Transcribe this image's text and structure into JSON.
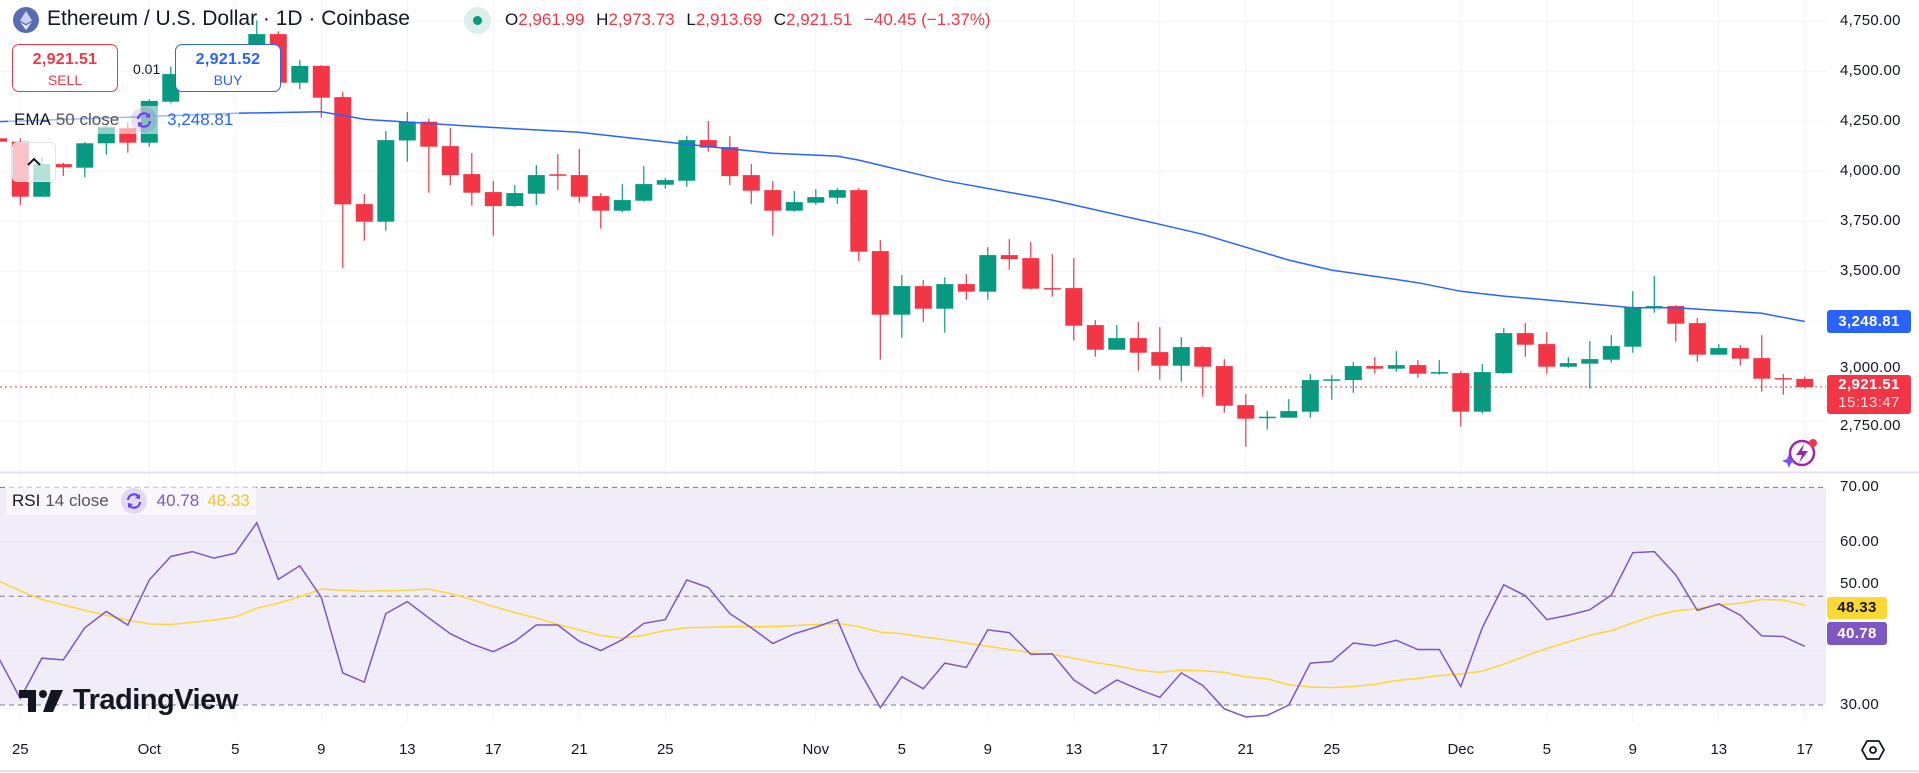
{
  "header": {
    "title": "Ethereum / U.S. Dollar · 1D · Coinbase",
    "market_status": "open",
    "ohlc": {
      "o_label": "O",
      "o": "2,961.99",
      "h_label": "H",
      "h": "2,973.73",
      "l_label": "L",
      "l": "2,913.69",
      "c_label": "C",
      "c": "2,921.51",
      "change": "−40.45 (−1.37%)"
    }
  },
  "trade": {
    "sell_price": "2,921.51",
    "sell_label": "SELL",
    "spread": "0.01",
    "buy_price": "2,921.52",
    "buy_label": "BUY"
  },
  "ema_legend": {
    "name": "EMA",
    "params": "50 close",
    "value": "3,248.81"
  },
  "rsi_legend": {
    "name": "RSI",
    "params": "14 close",
    "value": "40.78",
    "ma_value": "48.33"
  },
  "price_axis": {
    "ticks": [
      "4,750.00",
      "4,500.00",
      "4,250.00",
      "4,000.00",
      "3,750.00",
      "3,500.00",
      "3,000.00",
      "2,750.00"
    ],
    "ema_tag": "3,248.81",
    "last_price_tag": "2,921.51",
    "countdown": "15:13:47"
  },
  "rsi_axis": {
    "ticks": [
      "70.00",
      "60.00",
      "50.00",
      "30.00"
    ],
    "ma_tag": "48.33",
    "rsi_tag": "40.78"
  },
  "time_axis": [
    {
      "label": "25",
      "date": "Sep 25"
    },
    {
      "label": "Oct",
      "date": "Oct 1"
    },
    {
      "label": "5",
      "date": "Oct 5"
    },
    {
      "label": "9",
      "date": "Oct 9"
    },
    {
      "label": "13",
      "date": "Oct 13"
    },
    {
      "label": "17",
      "date": "Oct 17"
    },
    {
      "label": "21",
      "date": "Oct 21"
    },
    {
      "label": "25",
      "date": "Oct 25"
    },
    {
      "label": "Nov",
      "date": "Nov 1"
    },
    {
      "label": "5",
      "date": "Nov 5"
    },
    {
      "label": "9",
      "date": "Nov 9"
    },
    {
      "label": "13",
      "date": "Nov 13"
    },
    {
      "label": "17",
      "date": "Nov 17"
    },
    {
      "label": "21",
      "date": "Nov 21"
    },
    {
      "label": "25",
      "date": "Nov 25"
    },
    {
      "label": "Dec",
      "date": "Dec 1"
    },
    {
      "label": "5",
      "date": "Dec 5"
    },
    {
      "label": "9",
      "date": "Dec 9"
    },
    {
      "label": "13",
      "date": "Dec 13"
    },
    {
      "label": "17",
      "date": "Dec 17"
    }
  ],
  "watermark": "TradingView",
  "colors": {
    "up": "#089981",
    "down": "#f23645",
    "ema": "#2962ff",
    "rsi": "#7e57c2",
    "rsi_ma": "#fdd835",
    "rsi_band": "#f0ecf8",
    "grid": "#f0f3fa"
  },
  "chart_data": {
    "type": "candlestick",
    "price_range": [
      2500,
      4750
    ],
    "rsi_range": [
      30,
      70
    ],
    "candles_columns": [
      "date",
      "open",
      "high",
      "low",
      "close"
    ],
    "candles": [
      [
        "Sep 24",
        4165,
        4172,
        4140,
        4148
      ],
      [
        "Sep 25",
        4148,
        4165,
        3831,
        3873
      ],
      [
        "Sep 26",
        3873,
        4070,
        3873,
        4036
      ],
      [
        "Sep 27",
        4036,
        4043,
        3976,
        4020
      ],
      [
        "Sep 28",
        4018,
        4146,
        3970,
        4140
      ],
      [
        "Sep 29",
        4140,
        4240,
        4083,
        4220
      ],
      [
        "Sep 30",
        4215,
        4245,
        4093,
        4143
      ],
      [
        "Oct 1",
        4143,
        4360,
        4123,
        4352
      ],
      [
        "Oct 2",
        4348,
        4523,
        4340,
        4486
      ],
      [
        "Oct 3",
        4486,
        4520,
        4440,
        4490
      ],
      [
        "Oct 4",
        4490,
        4530,
        4460,
        4500
      ],
      [
        "Oct 5",
        4500,
        4590,
        4480,
        4560
      ],
      [
        "Oct 6",
        4560,
        4755,
        4540,
        4686
      ],
      [
        "Oct 7",
        4686,
        4700,
        4420,
        4443
      ],
      [
        "Oct 8",
        4443,
        4557,
        4411,
        4527
      ],
      [
        "Oct 9",
        4527,
        4531,
        4268,
        4368
      ],
      [
        "Oct 10",
        4371,
        4398,
        3515,
        3835
      ],
      [
        "Oct 11",
        3836,
        3886,
        3653,
        3748
      ],
      [
        "Oct 12",
        3748,
        4201,
        3703,
        4156
      ],
      [
        "Oct 13",
        4154,
        4296,
        4048,
        4248
      ],
      [
        "Oct 14",
        4248,
        4263,
        3893,
        4123
      ],
      [
        "Oct 15",
        4126,
        4218,
        3931,
        3981
      ],
      [
        "Oct 16",
        3986,
        4091,
        3828,
        3893
      ],
      [
        "Oct 17",
        3896,
        3951,
        3678,
        3826
      ],
      [
        "Oct 18",
        3826,
        3931,
        3823,
        3891
      ],
      [
        "Oct 19",
        3888,
        4031,
        3831,
        3981
      ],
      [
        "Oct 20",
        3985,
        4086,
        3906,
        3981
      ],
      [
        "Oct 21",
        3981,
        4111,
        3843,
        3873
      ],
      [
        "Oct 22",
        3876,
        3891,
        3713,
        3803
      ],
      [
        "Oct 23",
        3803,
        3936,
        3796,
        3856
      ],
      [
        "Oct 24",
        3853,
        4026,
        3848,
        3936
      ],
      [
        "Oct 25",
        3933,
        3966,
        3913,
        3956
      ],
      [
        "Oct 26",
        3953,
        4176,
        3923,
        4156
      ],
      [
        "Oct 27",
        4156,
        4251,
        4098,
        4118
      ],
      [
        "Oct 28",
        4121,
        4176,
        3931,
        3976
      ],
      [
        "Oct 29",
        3981,
        4036,
        3836,
        3903
      ],
      [
        "Oct 30",
        3906,
        3951,
        3678,
        3803
      ],
      [
        "Oct 31",
        3803,
        3901,
        3798,
        3846
      ],
      [
        "Nov 1",
        3843,
        3911,
        3833,
        3871
      ],
      [
        "Nov 2",
        3868,
        3916,
        3836,
        3906
      ],
      [
        "Nov 3",
        3906,
        3916,
        3551,
        3598
      ],
      [
        "Nov 4",
        3601,
        3656,
        3058,
        3283
      ],
      [
        "Nov 5",
        3283,
        3481,
        3168,
        3426
      ],
      [
        "Nov 6",
        3426,
        3456,
        3248,
        3313
      ],
      [
        "Nov 7",
        3313,
        3471,
        3193,
        3436
      ],
      [
        "Nov 8",
        3436,
        3486,
        3358,
        3398
      ],
      [
        "Nov 9",
        3398,
        3621,
        3358,
        3581
      ],
      [
        "Nov 10",
        3581,
        3661,
        3508,
        3561
      ],
      [
        "Nov 11",
        3566,
        3646,
        3408,
        3413
      ],
      [
        "Nov 12",
        3416,
        3586,
        3373,
        3413
      ],
      [
        "Nov 13",
        3416,
        3566,
        3153,
        3228
      ],
      [
        "Nov 14",
        3231,
        3256,
        3073,
        3108
      ],
      [
        "Nov 15",
        3108,
        3231,
        3108,
        3166
      ],
      [
        "Nov 16",
        3166,
        3246,
        3003,
        3093
      ],
      [
        "Nov 17",
        3096,
        3221,
        2958,
        3028
      ],
      [
        "Nov 18",
        3028,
        3171,
        2948,
        3121
      ],
      [
        "Nov 19",
        3121,
        3126,
        2873,
        3023
      ],
      [
        "Nov 20",
        3026,
        3061,
        2793,
        2828
      ],
      [
        "Nov 21",
        2831,
        2886,
        2623,
        2763
      ],
      [
        "Nov 22",
        2768,
        2801,
        2708,
        2773
      ],
      [
        "Nov 23",
        2768,
        2861,
        2768,
        2801
      ],
      [
        "Nov 24",
        2798,
        2986,
        2768,
        2956
      ],
      [
        "Nov 25",
        2953,
        2981,
        2858,
        2960
      ],
      [
        "Nov 26",
        2956,
        3046,
        2893,
        3026
      ],
      [
        "Nov 27",
        3026,
        3071,
        2988,
        3013
      ],
      [
        "Nov 28",
        3013,
        3101,
        2998,
        3031
      ],
      [
        "Nov 29",
        3031,
        3056,
        2968,
        2988
      ],
      [
        "Nov 30",
        2993,
        3056,
        2983,
        2996
      ],
      [
        "Dec 1",
        2991,
        3001,
        2723,
        2798
      ],
      [
        "Dec 2",
        2798,
        3036,
        2788,
        2996
      ],
      [
        "Dec 3",
        2991,
        3216,
        2986,
        3191
      ],
      [
        "Dec 4",
        3191,
        3241,
        3073,
        3133
      ],
      [
        "Dec 5",
        3136,
        3196,
        2988,
        3023
      ],
      [
        "Dec 6",
        3023,
        3071,
        3018,
        3041
      ],
      [
        "Dec 7",
        3038,
        3151,
        2913,
        3061
      ],
      [
        "Dec 8",
        3058,
        3181,
        3043,
        3126
      ],
      [
        "Dec 9",
        3123,
        3401,
        3093,
        3321
      ],
      [
        "Dec 10",
        3318,
        3476,
        3293,
        3326
      ],
      [
        "Dec 11",
        3326,
        3331,
        3148,
        3238
      ],
      [
        "Dec 12",
        3241,
        3266,
        3048,
        3083
      ],
      [
        "Dec 13",
        3083,
        3136,
        3083,
        3116
      ],
      [
        "Dec 14",
        3116,
        3131,
        3028,
        3063
      ],
      [
        "Dec 15",
        3066,
        3181,
        2898,
        2963
      ],
      [
        "Dec 16",
        2966,
        2986,
        2883,
        2963
      ],
      [
        "Dec 17",
        2961.99,
        2973.73,
        2913.69,
        2921.51
      ]
    ],
    "ema50": [
      [
        "Sep 24",
        4248
      ],
      [
        "Sep 30",
        4270
      ],
      [
        "Oct 5",
        4290
      ],
      [
        "Oct 9",
        4298
      ],
      [
        "Oct 11",
        4260
      ],
      [
        "Oct 16",
        4225
      ],
      [
        "Oct 21",
        4195
      ],
      [
        "Oct 26",
        4135
      ],
      [
        "Oct 30",
        4090
      ],
      [
        "Nov 2",
        4076
      ],
      [
        "Nov 3",
        4056
      ],
      [
        "Nov 7",
        3953
      ],
      [
        "Nov 12",
        3856
      ],
      [
        "Nov 17",
        3735
      ],
      [
        "Nov 19",
        3685
      ],
      [
        "Nov 23",
        3556
      ],
      [
        "Nov 25",
        3506
      ],
      [
        "Nov 29",
        3443
      ],
      [
        "Dec 1",
        3400
      ],
      [
        "Dec 3",
        3376
      ],
      [
        "Dec 9",
        3318
      ],
      [
        "Dec 11",
        3318
      ],
      [
        "Dec 15",
        3290
      ],
      [
        "Dec 17",
        3248.81
      ]
    ],
    "rsi14": [
      38.6,
      31.2,
      38.6,
      38.3,
      44.2,
      47.2,
      44.7,
      53.0,
      57.3,
      58.2,
      57.0,
      57.9,
      63.5,
      53.1,
      55.6,
      49.8,
      35.9,
      34.2,
      46.8,
      49.0,
      46.0,
      43.1,
      41.2,
      39.8,
      41.7,
      44.7,
      44.7,
      41.7,
      40.0,
      42.0,
      45.0,
      45.7,
      53.0,
      51.6,
      46.8,
      44.2,
      41.3,
      43.1,
      44.3,
      45.7,
      36.5,
      29.5,
      35.2,
      33.0,
      37.7,
      36.9,
      43.8,
      43.3,
      39.3,
      39.4,
      34.6,
      32.1,
      34.6,
      32.9,
      31.4,
      35.9,
      33.6,
      29.3,
      27.8,
      28.1,
      30.0,
      37.7,
      38.0,
      41.4,
      40.9,
      41.9,
      40.2,
      40.2,
      33.4,
      44.2,
      52.1,
      50.1,
      45.7,
      46.5,
      47.5,
      50.2,
      58.0,
      58.2,
      53.9,
      47.4,
      48.6,
      46.5,
      42.7,
      42.6,
      40.78
    ],
    "rsi_ma": [
      52.8,
      51.0,
      49.4,
      48.4,
      47.4,
      46.5,
      45.6,
      44.9,
      44.8,
      45.2,
      45.6,
      46.2,
      47.8,
      48.7,
      49.9,
      51.3,
      51.1,
      50.9,
      51.0,
      51.1,
      51.3,
      50.5,
      49.4,
      48.1,
      47.0,
      46.0,
      44.8,
      43.8,
      42.8,
      42.3,
      42.8,
      43.7,
      44.2,
      44.3,
      44.4,
      44.4,
      44.4,
      44.6,
      44.8,
      45.0,
      44.4,
      43.4,
      43.1,
      42.5,
      42.0,
      41.4,
      40.8,
      40.2,
      39.6,
      39.3,
      38.6,
      37.8,
      37.2,
      36.4,
      36.0,
      36.4,
      36.3,
      36.0,
      35.2,
      34.8,
      33.7,
      33.3,
      33.2,
      33.4,
      33.8,
      34.5,
      34.9,
      35.4,
      35.7,
      36.2,
      37.5,
      39.0,
      40.4,
      41.6,
      42.8,
      43.7,
      45.1,
      46.4,
      47.3,
      47.7,
      48.4,
      48.7,
      49.4,
      49.3,
      48.33
    ]
  }
}
